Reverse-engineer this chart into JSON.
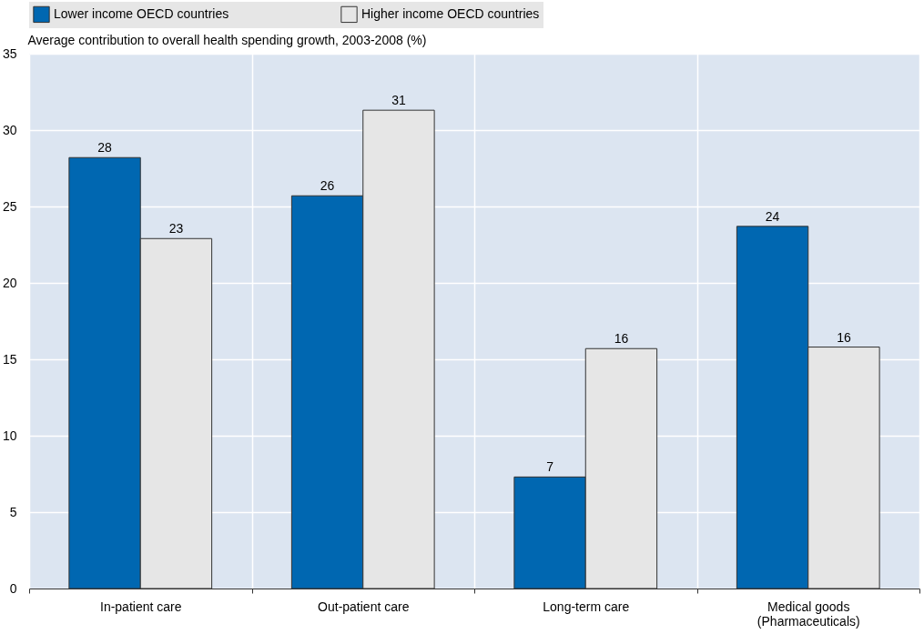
{
  "chart_data": {
    "type": "bar",
    "ylabel": "Average contribution to overall health spending growth, 2003-2008 (%)",
    "categories": [
      "In-patient care",
      "Out-patient care",
      "Long-term care",
      "Medical goods\n(Pharmaceuticals)"
    ],
    "series": [
      {
        "name": "Lower income OECD countries",
        "color": "#0067b1",
        "values": [
          28.2,
          25.7,
          7.3,
          23.7
        ],
        "value_labels": [
          "28",
          "26",
          "7",
          "24"
        ]
      },
      {
        "name": "Higher income OECD countries",
        "color": "#e6e6e6",
        "values": [
          22.9,
          31.3,
          15.7,
          15.8
        ],
        "value_labels": [
          "23",
          "31",
          "16",
          "16"
        ]
      }
    ],
    "ylim": [
      0,
      35
    ],
    "yticks": [
      0,
      5,
      10,
      15,
      20,
      25,
      30,
      35
    ],
    "grid": true,
    "legend": "top"
  }
}
